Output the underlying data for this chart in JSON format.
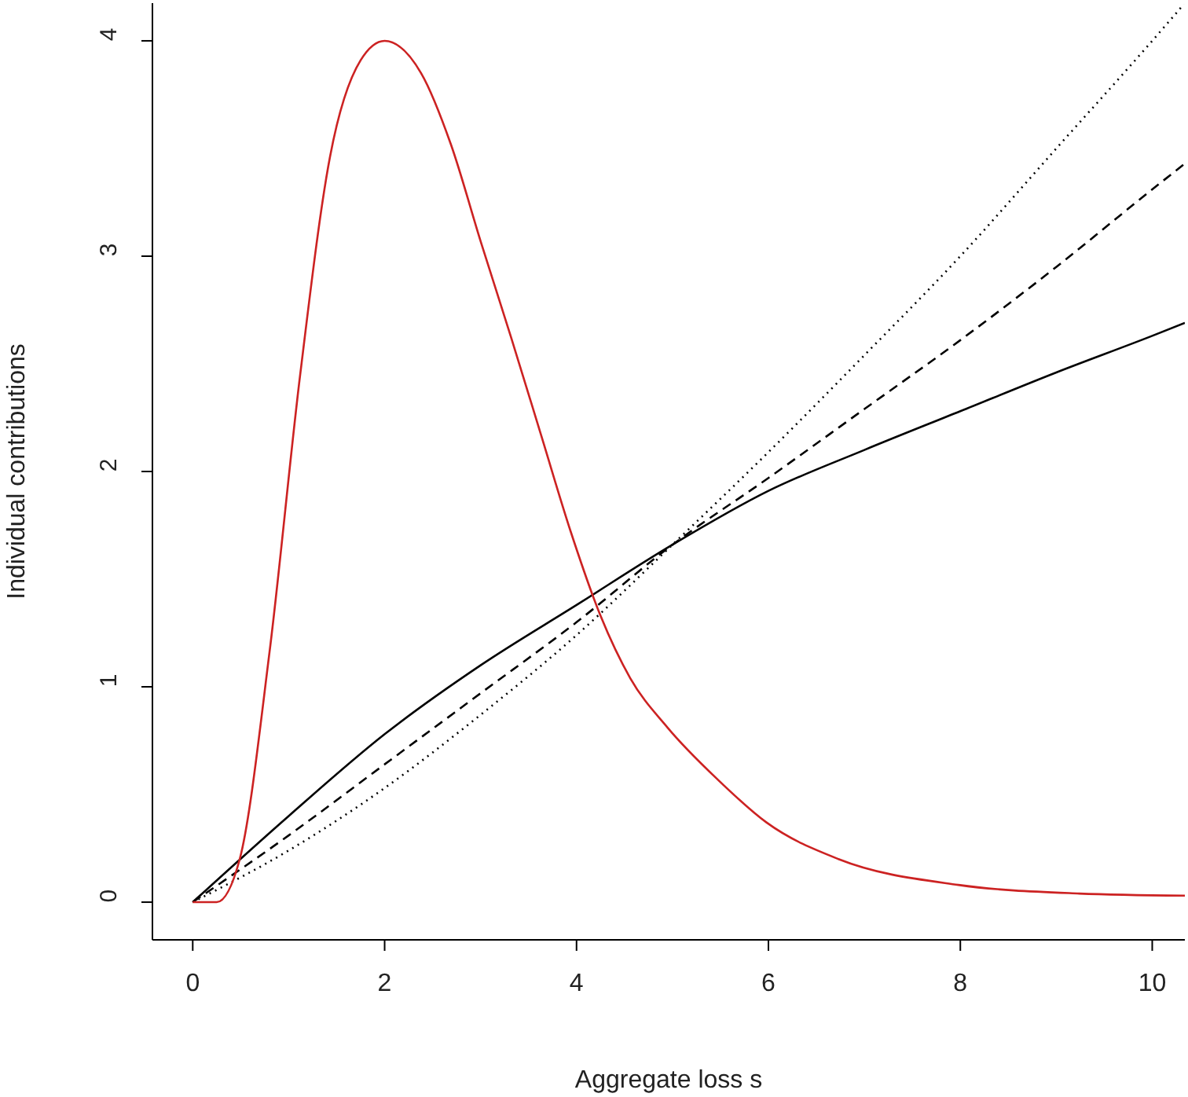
{
  "chart_data": {
    "type": "line",
    "xlabel": "Aggregate loss s",
    "ylabel": "Individual contributions",
    "xlim": [
      -0.42,
      10.34
    ],
    "ylim": [
      -0.175,
      4.175
    ],
    "xticks": [
      0,
      2,
      4,
      6,
      8,
      10
    ],
    "yticks": [
      0,
      1,
      2,
      3,
      4
    ],
    "series": [
      {
        "color": "#000000",
        "line_style": "solid",
        "x": [
          0,
          1,
          2,
          3,
          4,
          5,
          6,
          7,
          8,
          9,
          10,
          10.34
        ],
        "values": [
          0,
          0.4,
          0.78,
          1.1,
          1.38,
          1.66,
          1.91,
          2.1,
          2.28,
          2.46,
          2.63,
          2.69
        ]
      },
      {
        "color": "#000000",
        "line_style": "dashed",
        "x": [
          0,
          1,
          2,
          3,
          4,
          5,
          6,
          7,
          8,
          9,
          10,
          10.34
        ],
        "values": [
          0,
          0.31,
          0.64,
          0.97,
          1.3,
          1.66,
          1.97,
          2.29,
          2.61,
          2.95,
          3.31,
          3.43
        ]
      },
      {
        "color": "#000000",
        "line_style": "dotted",
        "x": [
          0,
          1,
          2,
          3,
          4,
          5,
          6,
          7,
          8,
          9,
          10,
          10.33
        ],
        "values": [
          0,
          0.24,
          0.53,
          0.87,
          1.24,
          1.66,
          2.09,
          2.54,
          3.0,
          3.5,
          4.0,
          4.17
        ]
      },
      {
        "color": "#cc2222",
        "line_style": "solid",
        "x": [
          0,
          0.25,
          0.49,
          0.8,
          1.12,
          1.43,
          1.75,
          2.0,
          2.38,
          2.69,
          3.0,
          3.32,
          3.63,
          3.94,
          4.25,
          4.56,
          4.95,
          5.47,
          5.98,
          6.73,
          7.98,
          9.24,
          10.34
        ],
        "values": [
          0,
          0,
          0.2,
          1.16,
          2.45,
          3.46,
          3.91,
          4.0,
          3.85,
          3.52,
          3.07,
          2.62,
          2.17,
          1.72,
          1.33,
          1.04,
          0.81,
          0.57,
          0.37,
          0.2,
          0.08,
          0.04,
          0.03
        ]
      }
    ]
  }
}
